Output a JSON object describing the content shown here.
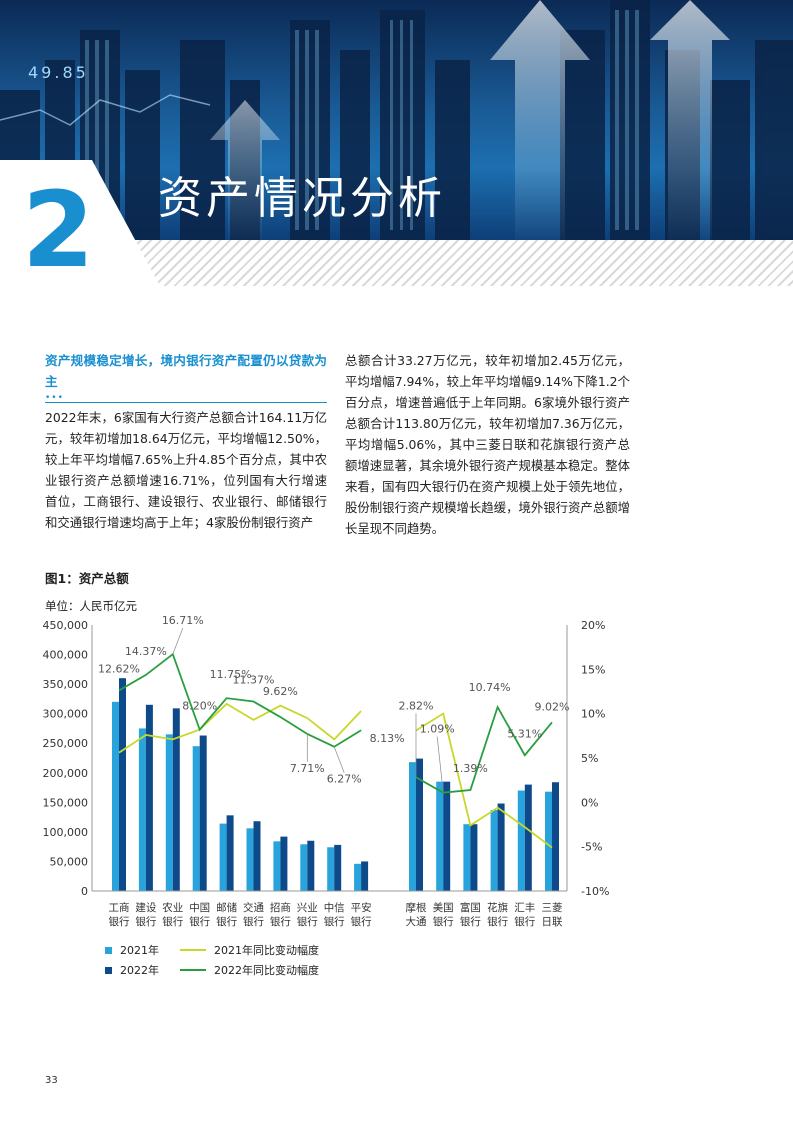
{
  "hero": {
    "chapter_number": "2",
    "chapter_title": "资产情况分析",
    "ticker_text": "49.85",
    "colors": {
      "brand_blue": "#1a8fd0",
      "navy": "#0e3f78"
    }
  },
  "article": {
    "lead_heading": "资产规模稳定增长，境内银行资产配置仍以贷款为主",
    "lead_dots": "•••",
    "body_left": "2022年末，6家国有大行资产总额合计164.11万亿元，较年初增加18.64万亿元，平均增幅12.50%，较上年平均增幅7.65%上升4.85个百分点，其中农业银行资产总额增速16.71%，位列国有大行增速首位，工商银行、建设银行、农业银行、邮储银行和交通银行增速均高于上年；4家股份制银行资产",
    "body_right": "总额合计33.27万亿元，较年初增加2.45万亿元，平均增幅7.94%，较上年平均增幅9.14%下降1.2个百分点，增速普遍低于上年同期。6家境外银行资产总额合计113.80万亿元，较年初增加7.36万亿元，平均增幅5.06%，其中三菱日联和花旗银行资产总额增速显著，其余境外银行资产规模基本稳定。整体来看，国有四大银行仍在资产规模上处于领先地位，股份制银行资产规模增长趋缓，境外银行资产总额增长呈现不同趋势。"
  },
  "figure": {
    "title": "图1：资产总额",
    "unit": "单位：人民币亿元"
  },
  "chart_data": {
    "type": "bar",
    "title": "图1：资产总额",
    "ylabel": "单位：人民币亿元",
    "ylim": [
      0,
      450000
    ],
    "y2lim": [
      -10,
      20
    ],
    "left_ticks": [
      "450,000",
      "400,000",
      "350,000",
      "300,000",
      "250,000",
      "200,000",
      "150,000",
      "100,000",
      "50,000",
      "0"
    ],
    "right_ticks": [
      "20%",
      "15%",
      "10%",
      "5%",
      "0%",
      "-5%",
      "-10%"
    ],
    "categories": [
      [
        "工商",
        "银行"
      ],
      [
        "建设",
        "银行"
      ],
      [
        "农业",
        "银行"
      ],
      [
        "中国",
        "银行"
      ],
      [
        "邮储",
        "银行"
      ],
      [
        "交通",
        "银行"
      ],
      [
        "招商",
        "银行"
      ],
      [
        "兴业",
        "银行"
      ],
      [
        "中信",
        "银行"
      ],
      [
        "平安",
        "银行"
      ],
      [
        "摩根",
        "大通"
      ],
      [
        "美国",
        "银行"
      ],
      [
        "富国",
        "银行"
      ],
      [
        "花旗",
        "银行"
      ],
      [
        "汇丰",
        "银行"
      ],
      [
        "三菱",
        "日联"
      ]
    ],
    "series": [
      {
        "name": "2021年",
        "kind": "bar",
        "color": "#29a3dc",
        "values": [
          320000,
          275000,
          265000,
          245000,
          114000,
          106000,
          84000,
          79000,
          74000,
          46000,
          218000,
          185000,
          113000,
          137000,
          170000,
          168000
        ]
      },
      {
        "name": "2022年",
        "kind": "bar",
        "color": "#0e4a8a",
        "values": [
          360000,
          315000,
          309000,
          263000,
          128000,
          118000,
          92000,
          85000,
          78000,
          50000,
          224000,
          185000,
          113000,
          148000,
          180000,
          184000
        ]
      },
      {
        "name": "2021年同比变动幅度",
        "kind": "line",
        "color": "#c8d82a",
        "values": [
          5.6,
          7.6,
          7.1,
          8.2,
          11.1,
          9.3,
          10.9,
          9.5,
          7.1,
          10.3,
          8.1,
          10.0,
          -2.6,
          -0.6,
          -2.8,
          -5.1
        ]
      },
      {
        "name": "2022年同比变动幅度",
        "kind": "line",
        "color": "#2a9e3f",
        "values": [
          12.62,
          14.37,
          16.71,
          8.2,
          11.75,
          11.37,
          9.62,
          7.71,
          6.27,
          8.13,
          2.82,
          1.09,
          1.39,
          10.74,
          5.31,
          9.02
        ]
      }
    ],
    "annotations": [
      "12.62%",
      "14.37%",
      "16.71%",
      "8.20%",
      "11.75%",
      "11.37%",
      "9.62%",
      "7.71%",
      "6.27%",
      "8.13%",
      "2.82%",
      "1.09%",
      "1.39%",
      "10.74%",
      "5.31%",
      "9.02%"
    ],
    "legend": [
      "2021年",
      "2022年",
      "2021年同比变动幅度",
      "2022年同比变动幅度"
    ]
  },
  "footer": {
    "page_number": "33"
  }
}
